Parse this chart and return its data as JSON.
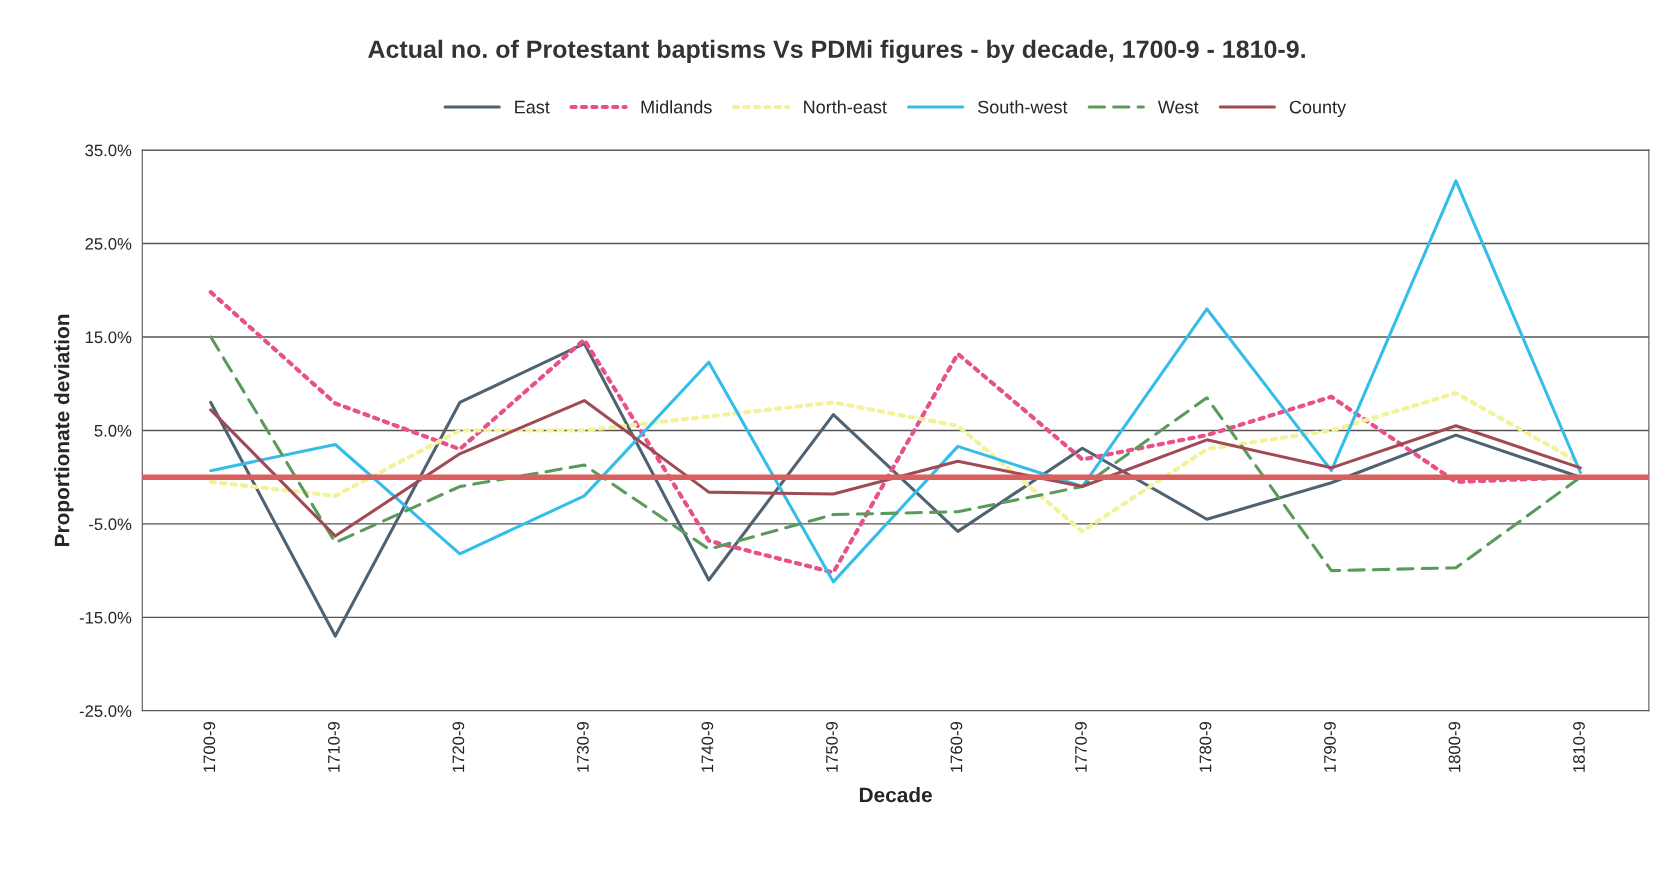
{
  "chart_data": {
    "type": "line",
    "title": "Actual no. of Protestant baptisms Vs PDMi figures - by decade, 1700-9 - 1810-9.",
    "xlabel": "Decade",
    "ylabel": "Proportionate deviation",
    "categories": [
      "1700-9",
      "1710-9",
      "1720-9",
      "1730-9",
      "1740-9",
      "1750-9",
      "1760-9",
      "1770-9",
      "1780-9",
      "1790-9",
      "1800-9",
      "1810-9"
    ],
    "series": [
      {
        "name": "East",
        "color": "#4f6272",
        "line_style": "solid",
        "values": [
          8,
          -17,
          8,
          14.3,
          -11,
          6.7,
          -5.8,
          3.1,
          -4.5,
          -0.6,
          4.5,
          0
        ]
      },
      {
        "name": "Midlands",
        "color": "#e8508a",
        "line_style": "dotted",
        "values": [
          19.8,
          7.9,
          3,
          14.7,
          -6.8,
          -10.2,
          13.2,
          1.9,
          4.5,
          8.6,
          -0.5,
          0
        ]
      },
      {
        "name": "North-east",
        "color": "#f2f29a",
        "line_style": "dotted",
        "values": [
          -0.5,
          -2,
          5,
          5,
          6.5,
          8,
          5.5,
          -5.8,
          3,
          5,
          9,
          1.5
        ]
      },
      {
        "name": "South-west",
        "color": "#35bdea",
        "line_style": "solid",
        "values": [
          0.7,
          3.5,
          -8.2,
          -2,
          12.3,
          -11.2,
          3.3,
          -1,
          18,
          0.7,
          31.7,
          0.5
        ]
      },
      {
        "name": "West",
        "color": "#5a9a5a",
        "line_style": "dashed",
        "values": [
          15,
          -7,
          -1,
          1.3,
          -7.7,
          -4,
          -3.7,
          -1,
          8.5,
          -10,
          -9.7,
          0
        ]
      },
      {
        "name": "County",
        "color": "#a04a55",
        "line_style": "solid",
        "values": [
          7.2,
          -6.3,
          2.5,
          8.2,
          -1.6,
          -1.8,
          1.7,
          -1,
          4,
          1,
          5.5,
          1
        ]
      }
    ],
    "ylim": [
      -25,
      35
    ],
    "yticks": [
      {
        "value": -25,
        "label": "-25.0%"
      },
      {
        "value": -15,
        "label": "-15.0%"
      },
      {
        "value": -5,
        "label": "-5.0%"
      },
      {
        "value": 5,
        "label": "5.0%"
      },
      {
        "value": 15,
        "label": "15.0%"
      },
      {
        "value": 25,
        "label": "25.0%"
      },
      {
        "value": 35,
        "label": "35.0%"
      }
    ],
    "ref_lines": [
      {
        "axis": "y",
        "value": 0,
        "color": "#d9605f"
      }
    ],
    "grid": "y",
    "legend": "top",
    "marker": "none"
  }
}
